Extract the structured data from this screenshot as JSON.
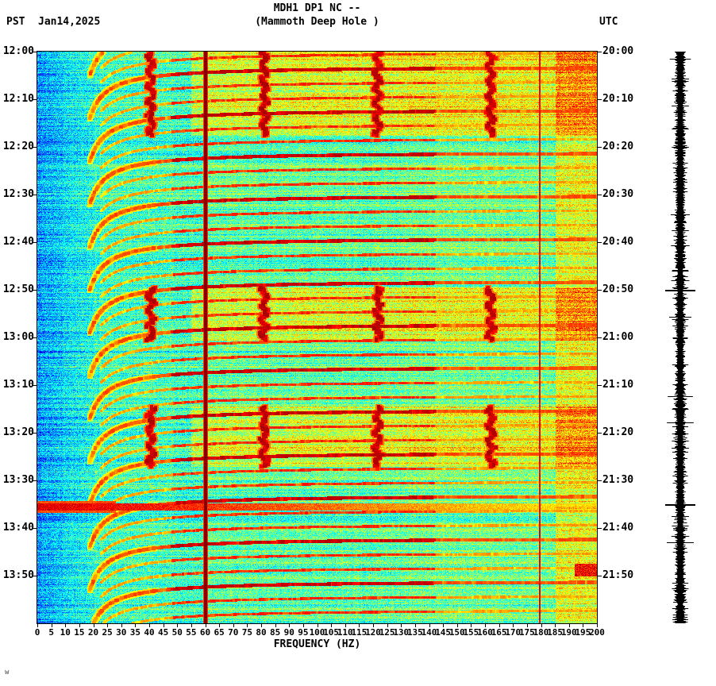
{
  "header": {
    "left_tz": "PST",
    "date": "Jan14,2025",
    "title_line1": "MDH1 DP1 NC --",
    "title_line2": "(Mammoth Deep Hole )",
    "right_tz": "UTC"
  },
  "footer": {
    "mark": "w"
  },
  "chart_data": {
    "type": "heatmap",
    "subtype": "seismic_spectrogram",
    "station": "MDH1",
    "channel": "DP1",
    "network": "NC",
    "site_name": "Mammoth Deep Hole",
    "date": "Jan14,2025",
    "xlabel": "FREQUENCY (HZ)",
    "xlim": [
      0,
      200
    ],
    "x_tick_step_hz": 5,
    "x_ticks": [
      0,
      5,
      10,
      15,
      20,
      25,
      30,
      35,
      40,
      45,
      50,
      55,
      60,
      65,
      70,
      75,
      80,
      85,
      90,
      95,
      100,
      105,
      110,
      115,
      120,
      125,
      130,
      135,
      140,
      145,
      150,
      155,
      160,
      165,
      170,
      175,
      180,
      185,
      190,
      195,
      200
    ],
    "time_axis": {
      "left_timezone": "PST",
      "right_timezone": "UTC",
      "start_pst": "12:00",
      "end_pst": "14:00",
      "duration_min": 120,
      "tick_interval_min": 10,
      "left_tick_labels": [
        "12:00",
        "12:10",
        "12:20",
        "12:30",
        "12:40",
        "12:50",
        "13:00",
        "13:10",
        "13:20",
        "13:30",
        "13:40",
        "13:50"
      ],
      "right_tick_labels": [
        "20:00",
        "20:10",
        "20:20",
        "20:30",
        "20:40",
        "20:50",
        "21:00",
        "21:10",
        "21:20",
        "21:30",
        "21:40",
        "21:50"
      ]
    },
    "colormap": "jet",
    "colormap_stops": [
      "#00007f",
      "#0000ff",
      "#00ffff",
      "#7fff7f",
      "#ffff00",
      "#ff7f00",
      "#ff0000",
      "#7f0000"
    ],
    "features": {
      "description": "Repeating dispersive earthquake arcs over cyan background noise, harmonic resonance bands during tremor episodes, constant 60 Hz mains line, thin line near 180 Hz, broadband event at 13:35 PST",
      "mains_hum_line_hz": 60,
      "narrow_line_hz": 179.5,
      "broadband_event_min": 95.5,
      "broadband_event_pst": "13:35",
      "broadband_event_utc": "21:35",
      "tremor_episodes_min": [
        [
          0,
          17.5
        ],
        [
          49.5,
          60.5
        ],
        [
          74.5,
          87
        ]
      ],
      "resonance_bands_hz": [
        40.5,
        81,
        121.5,
        162
      ],
      "arc_interval_min": 3.0,
      "arc_start_min": -6,
      "arc_count": 44,
      "arc_strong_every": 3,
      "arc_shape_K": 62,
      "arc_f0_hz": 13,
      "hot_patch": {
        "f_hz": [
          192,
          200
        ],
        "t_min": [
          107.5,
          110
        ]
      }
    }
  },
  "side_trace": {
    "marks_utc": [
      "20:50",
      "21:35"
    ],
    "marks_min": [
      50,
      95
    ]
  }
}
